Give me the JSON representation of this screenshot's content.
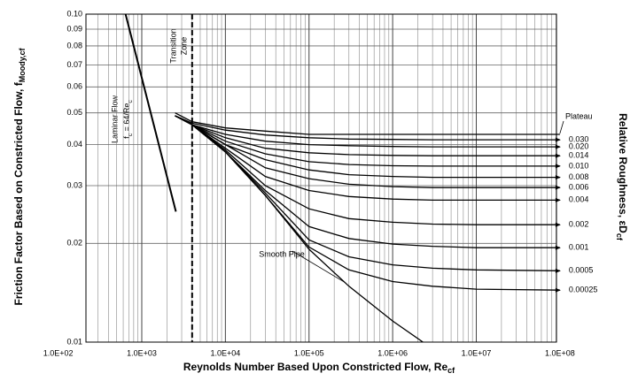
{
  "chart_data": {
    "type": "line",
    "xlabel": "Reynolds Number Based Upon Constricted Flow, Re",
    "xlabel_sub": "cf",
    "ylabel": "Friction Factor Based on Constricted Flow, f",
    "ylabel_sub": "Moody,cf",
    "y2label": "Relative Roughness, εD",
    "y2label_sub": "cf",
    "xscale": "log",
    "yscale": "log",
    "grid": true,
    "minor_grid": true,
    "xlim": [
      215,
      91000000
    ],
    "ylim": [
      0.01,
      0.1
    ],
    "xticks": [
      {
        "value": 100,
        "label": "1.0E+02"
      },
      {
        "value": 1000,
        "label": "1.0E+03"
      },
      {
        "value": 10000,
        "label": "1.0E+04"
      },
      {
        "value": 100000,
        "label": "1.0E+05"
      },
      {
        "value": 1000000,
        "label": "1.0E+06"
      },
      {
        "value": 10000000,
        "label": "1.0E+07"
      },
      {
        "value": 100000000,
        "label": "1.0E+08"
      }
    ],
    "yticks": [
      0.01,
      0.02,
      0.03,
      0.04,
      0.05,
      0.06,
      0.07,
      0.08,
      0.09,
      {
        "value": 0.1,
        "label": "0.10"
      }
    ],
    "transition_re": 4000,
    "annotations": {
      "laminar": "Laminar Flow",
      "formula": [
        "f",
        "c",
        " = 64/Re",
        "c"
      ],
      "transition": [
        "Transition",
        "Zone"
      ]
    },
    "series": [
      {
        "kind": "laminar",
        "color": "#000000",
        "x": [
          640,
          2560
        ],
        "values": [
          0.1,
          0.025
        ]
      },
      {
        "name": "Plateau",
        "kind": "plateau",
        "color": "#000000",
        "x": [
          2500,
          4000,
          10000,
          30000,
          100000,
          300000,
          1000000,
          3000000,
          10000000,
          100000000
        ],
        "values": [
          0.05,
          0.047,
          0.045,
          0.044,
          0.043,
          0.043,
          0.043,
          0.043,
          0.043,
          0.043
        ]
      },
      {
        "name": "0.030",
        "color": "#000000",
        "x": [
          2500,
          4000,
          10000,
          30000,
          100000,
          300000,
          1000000,
          3000000,
          10000000,
          100000000
        ],
        "values": [
          0.049,
          0.0465,
          0.0443,
          0.0428,
          0.042,
          0.0416,
          0.0415,
          0.0414,
          0.0414,
          0.0414
        ]
      },
      {
        "name": "0.020",
        "color": "#000000",
        "x": [
          2500,
          4000,
          10000,
          30000,
          100000,
          300000,
          1000000,
          3000000,
          10000000,
          100000000
        ],
        "values": [
          0.049,
          0.046,
          0.043,
          0.041,
          0.04,
          0.0397,
          0.0395,
          0.0394,
          0.0394,
          0.0394
        ]
      },
      {
        "name": "0.014",
        "color": "#000000",
        "x": [
          2500,
          4000,
          10000,
          30000,
          100000,
          300000,
          1000000,
          3000000,
          10000000,
          100000000
        ],
        "values": [
          0.049,
          0.046,
          0.042,
          0.039,
          0.0378,
          0.0373,
          0.0371,
          0.037,
          0.037,
          0.037
        ]
      },
      {
        "name": "0.010",
        "color": "#000000",
        "x": [
          2500,
          4000,
          10000,
          30000,
          100000,
          300000,
          1000000,
          3000000,
          10000000,
          100000000
        ],
        "values": [
          0.049,
          0.046,
          0.041,
          0.0375,
          0.0355,
          0.0348,
          0.0345,
          0.0344,
          0.0344,
          0.0344
        ]
      },
      {
        "name": "0.008",
        "color": "#000000",
        "x": [
          2500,
          4000,
          10000,
          30000,
          100000,
          300000,
          1000000,
          3000000,
          10000000,
          100000000
        ],
        "values": [
          0.049,
          0.046,
          0.04,
          0.036,
          0.0335,
          0.0324,
          0.032,
          0.0318,
          0.0318,
          0.0318
        ]
      },
      {
        "name": "0.006",
        "color": "#000000",
        "x": [
          2500,
          4000,
          10000,
          30000,
          100000,
          300000,
          1000000,
          3000000,
          10000000,
          100000000
        ],
        "values": [
          0.049,
          0.046,
          0.04,
          0.034,
          0.0315,
          0.0303,
          0.0298,
          0.0296,
          0.0296,
          0.0296
        ]
      },
      {
        "name": "0.004",
        "color": "#000000",
        "x": [
          2500,
          4000,
          10000,
          30000,
          100000,
          300000,
          1000000,
          3000000,
          10000000,
          100000000
        ],
        "values": [
          0.049,
          0.046,
          0.039,
          0.032,
          0.029,
          0.0278,
          0.0273,
          0.0271,
          0.0271,
          0.0271
        ]
      },
      {
        "name": "0.002",
        "color": "#000000",
        "x": [
          2500,
          4000,
          10000,
          30000,
          100000,
          300000,
          1000000,
          3000000,
          10000000,
          100000000
        ],
        "values": [
          0.049,
          0.046,
          0.0385,
          0.03,
          0.0255,
          0.0238,
          0.0232,
          0.0229,
          0.0228,
          0.0228
        ]
      },
      {
        "name": "0.001",
        "color": "#000000",
        "x": [
          2500,
          4000,
          10000,
          30000,
          100000,
          300000,
          1000000,
          3000000,
          10000000,
          100000000
        ],
        "values": [
          0.049,
          0.046,
          0.038,
          0.029,
          0.0225,
          0.0207,
          0.0199,
          0.0196,
          0.0194,
          0.0194
        ]
      },
      {
        "name": "0.0005",
        "color": "#000000",
        "x": [
          2500,
          4000,
          10000,
          30000,
          100000,
          300000,
          1000000,
          3000000,
          10000000,
          100000000
        ],
        "values": [
          0.049,
          0.046,
          0.038,
          0.0285,
          0.0205,
          0.0182,
          0.0172,
          0.0168,
          0.0166,
          0.0165
        ]
      },
      {
        "name": "0.00025",
        "color": "#000000",
        "x": [
          2500,
          4000,
          10000,
          30000,
          100000,
          300000,
          1000000,
          3000000,
          10000000,
          100000000
        ],
        "values": [
          0.049,
          0.046,
          0.038,
          0.028,
          0.0195,
          0.0166,
          0.0153,
          0.0148,
          0.0145,
          0.0144
        ]
      },
      {
        "name": "Smooth Pipe",
        "kind": "smooth",
        "color": "#000000",
        "x": [
          2500,
          4000,
          10000,
          30000,
          100000,
          300000,
          1000000,
          2300000
        ],
        "values": [
          0.049,
          0.046,
          0.038,
          0.028,
          0.0192,
          0.0148,
          0.0116,
          0.01
        ]
      }
    ]
  }
}
